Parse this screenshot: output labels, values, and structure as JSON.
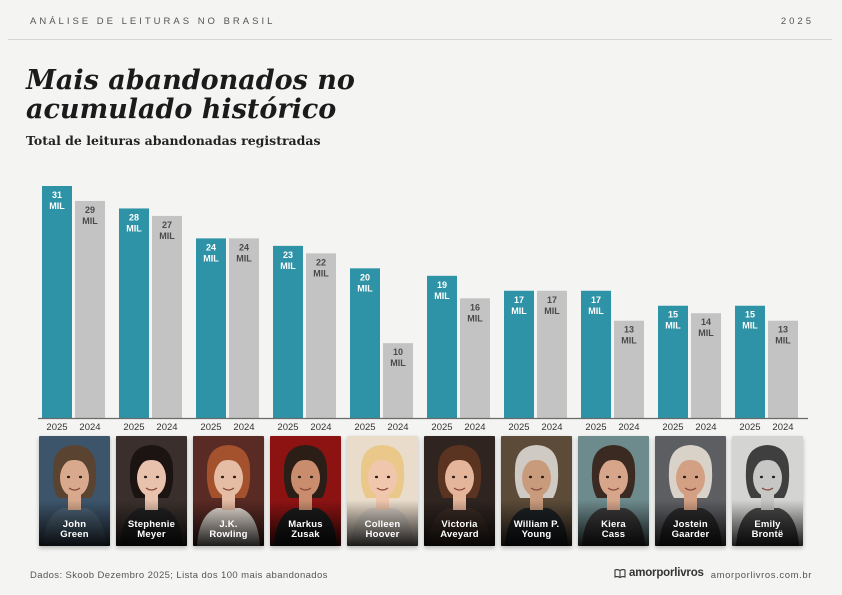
{
  "header": {
    "left": "ANÁLISE DE LEITURAS NO BRASIL",
    "right": "2025"
  },
  "chart_data": {
    "type": "bar",
    "title": "Mais abandonados no acumulado histórico",
    "subtitle": "Total de leituras abandonadas registradas",
    "categories": [
      "John Green",
      "Stephenie Meyer",
      "J.K. Rowling",
      "Markus Zusak",
      "Colleen Hoover",
      "Victoria Aveyard",
      "William P. Young",
      "Kiera Cass",
      "Jostein Gaarder",
      "Emily Brontë"
    ],
    "series": [
      {
        "name": "2025",
        "color": "#2e93a6",
        "values": [
          31,
          28,
          24,
          23,
          20,
          19,
          17,
          17,
          15,
          15
        ]
      },
      {
        "name": "2024",
        "color": "#c3c3c3",
        "values": [
          29,
          27,
          24,
          22,
          10,
          16,
          17,
          13,
          14,
          13
        ]
      }
    ],
    "value_unit": "MIL",
    "ylim": [
      0,
      31
    ],
    "grid": false,
    "xlabel": "",
    "ylabel": ""
  },
  "authors": [
    {
      "name": "John\nGreen",
      "icon": "john-green-portrait",
      "bg": "#3d556b",
      "skin": "#d8a98c",
      "hair": "#5a4330",
      "shirt": "#4d6478"
    },
    {
      "name": "Stephenie\nMeyer",
      "icon": "stephenie-meyer-portrait",
      "bg": "#3a2f2c",
      "skin": "#e8c2ad",
      "hair": "#1c1412",
      "shirt": "#222222"
    },
    {
      "name": "J.K.\nRowling",
      "icon": "jk-rowling-portrait",
      "bg": "#5a2a24",
      "skin": "#e5bca4",
      "hair": "#a4512d",
      "shirt": "#e9e0d8"
    },
    {
      "name": "Markus\nZusak",
      "icon": "markus-zusak-portrait",
      "bg": "#8d1313",
      "skin": "#c98d6e",
      "hair": "#2a1e17",
      "shirt": "#1c1c1c"
    },
    {
      "name": "Colleen\nHoover",
      "icon": "colleen-hoover-portrait",
      "bg": "#e9dccb",
      "skin": "#f0c7ad",
      "hair": "#e9c88a",
      "shirt": "#d9d0c6"
    },
    {
      "name": "Victoria\nAveyard",
      "icon": "victoria-aveyard-portrait",
      "bg": "#2f2420",
      "skin": "#e4b49b",
      "hair": "#5a3420",
      "shirt": "#3b2b24"
    },
    {
      "name": "William P.\nYoung",
      "icon": "william-young-portrait",
      "bg": "#5b4b38",
      "skin": "#c99b7d",
      "hair": "#cfcac3",
      "shirt": "#1e2226"
    },
    {
      "name": "Kiera\nCass",
      "icon": "kiera-cass-portrait",
      "bg": "#6d8a8c",
      "skin": "#d7a58a",
      "hair": "#3a2a22",
      "shirt": "#3c3a3a"
    },
    {
      "name": "Jostein\nGaarder",
      "icon": "jostein-gaarder-portrait",
      "bg": "#5c5e62",
      "skin": "#d3a084",
      "hair": "#d8d2c9",
      "shirt": "#2c2c2e"
    },
    {
      "name": "Emily\nBrontë",
      "icon": "emily-bronte-portrait",
      "bg": "#d4d4d2",
      "skin": "#c7c7c5",
      "hair": "#3f3f3f",
      "shirt": "#4a4a4a"
    }
  ],
  "footer": {
    "source": "Dados: Skoob Dezembro 2025; Lista dos 100 mais abandonados",
    "brand": "amorporlivros",
    "url": "amorporlivros.com.br"
  }
}
